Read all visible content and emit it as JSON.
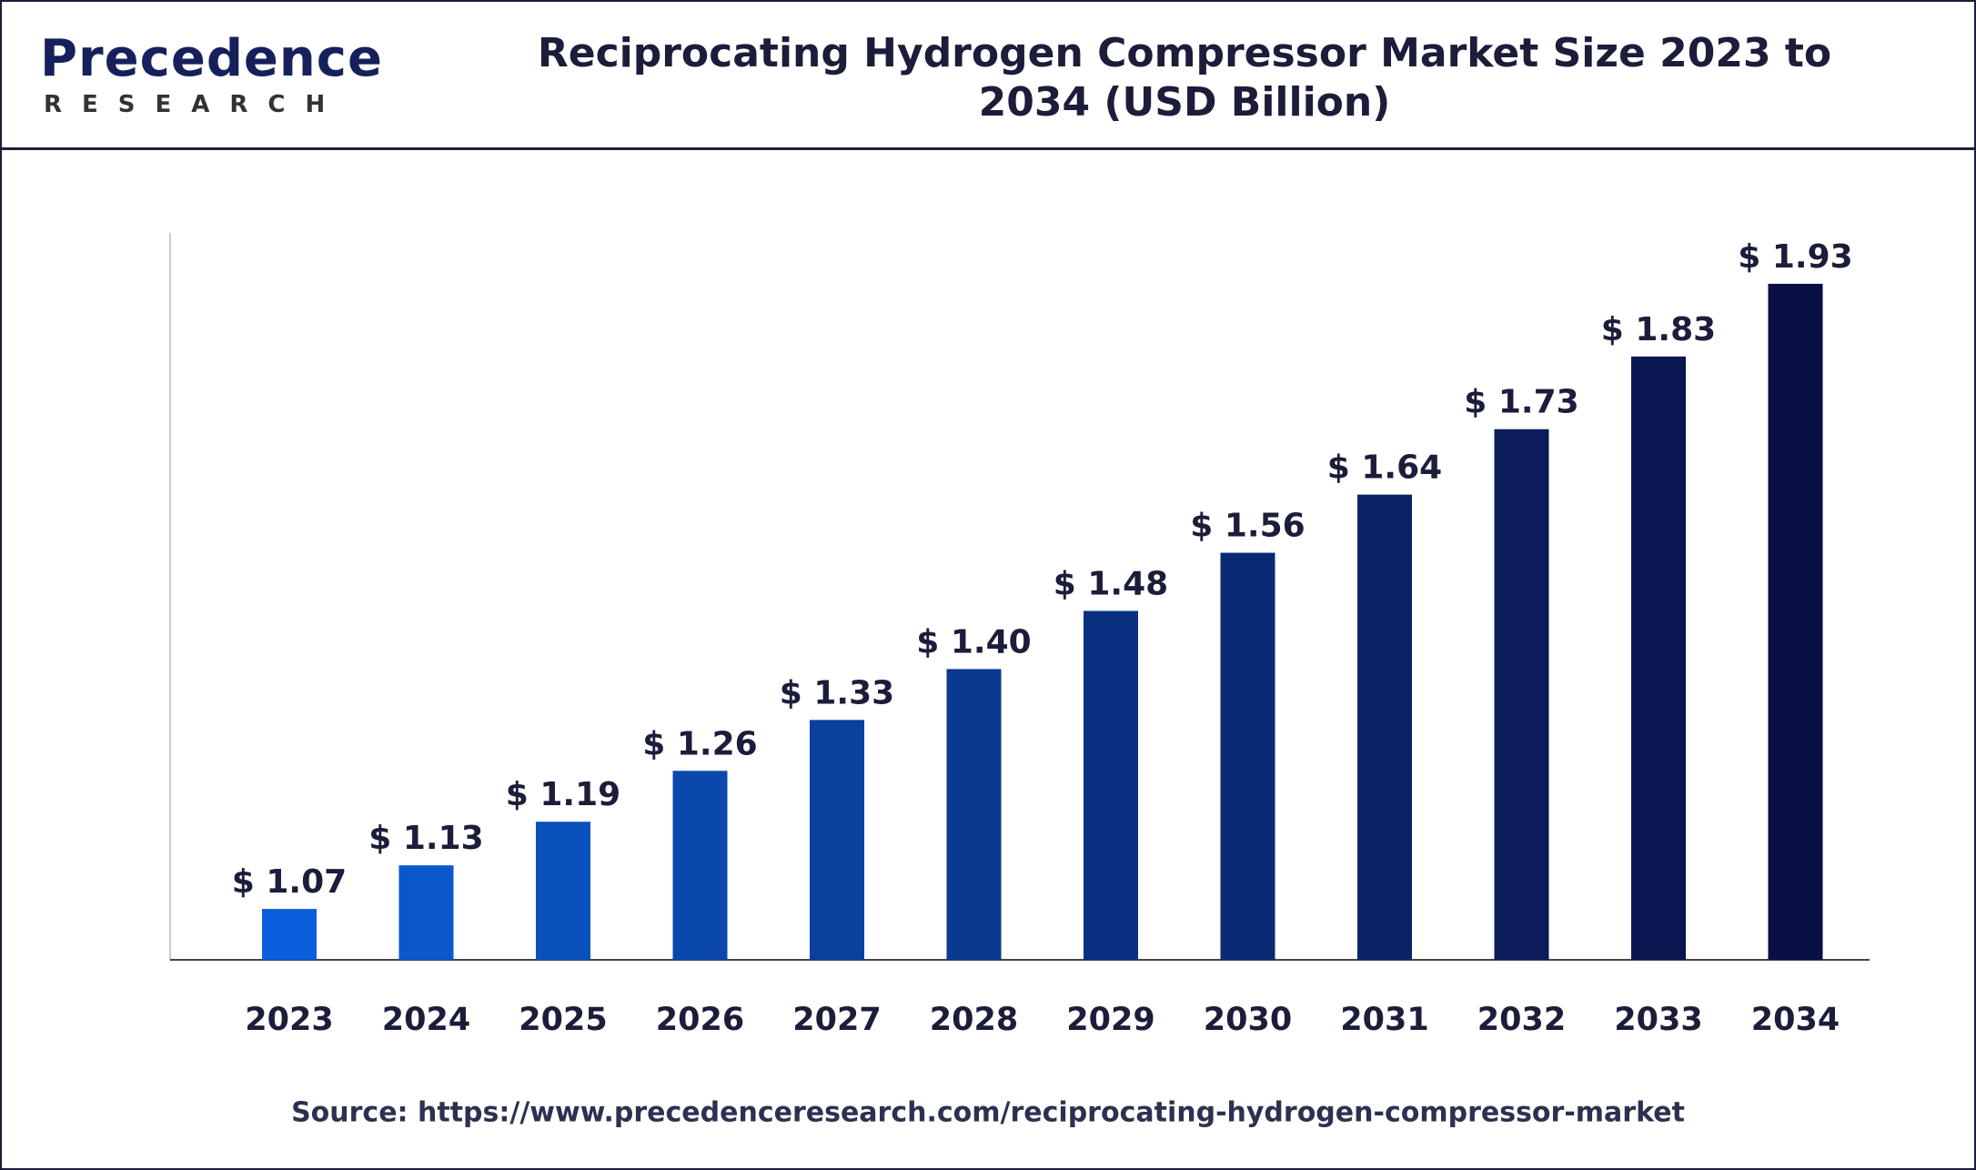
{
  "logo": {
    "name": "Precedence",
    "tagline": "RESEARCH"
  },
  "chart_data": {
    "type": "bar",
    "title": "Reciprocating Hydrogen Compressor Market Size 2023 to 2034 (USD Billion)",
    "categories": [
      "2023",
      "2024",
      "2025",
      "2026",
      "2027",
      "2028",
      "2029",
      "2030",
      "2031",
      "2032",
      "2033",
      "2034"
    ],
    "values": [
      1.07,
      1.13,
      1.19,
      1.26,
      1.33,
      1.4,
      1.48,
      1.56,
      1.64,
      1.73,
      1.83,
      1.93
    ],
    "value_labels": [
      "$ 1.07",
      "$ 1.13",
      "$ 1.19",
      "$ 1.26",
      "$ 1.33",
      "$ 1.40",
      "$ 1.48",
      "$ 1.56",
      "$ 1.64",
      "$ 1.73",
      "$ 1.83",
      "$ 1.93"
    ],
    "colors": [
      "#0a5fdc",
      "#0a58cc",
      "#0a50bd",
      "#0a48ae",
      "#0a409e",
      "#0a388f",
      "#0a3081",
      "#0a2a74",
      "#0a2366",
      "#0a1c5a",
      "#0a164f",
      "#0a1045"
    ],
    "ylim": [
      1.0,
      2.0
    ],
    "source": "Source: https://www.precedenceresearch.com/reciprocating-hydrogen-compressor-market"
  }
}
